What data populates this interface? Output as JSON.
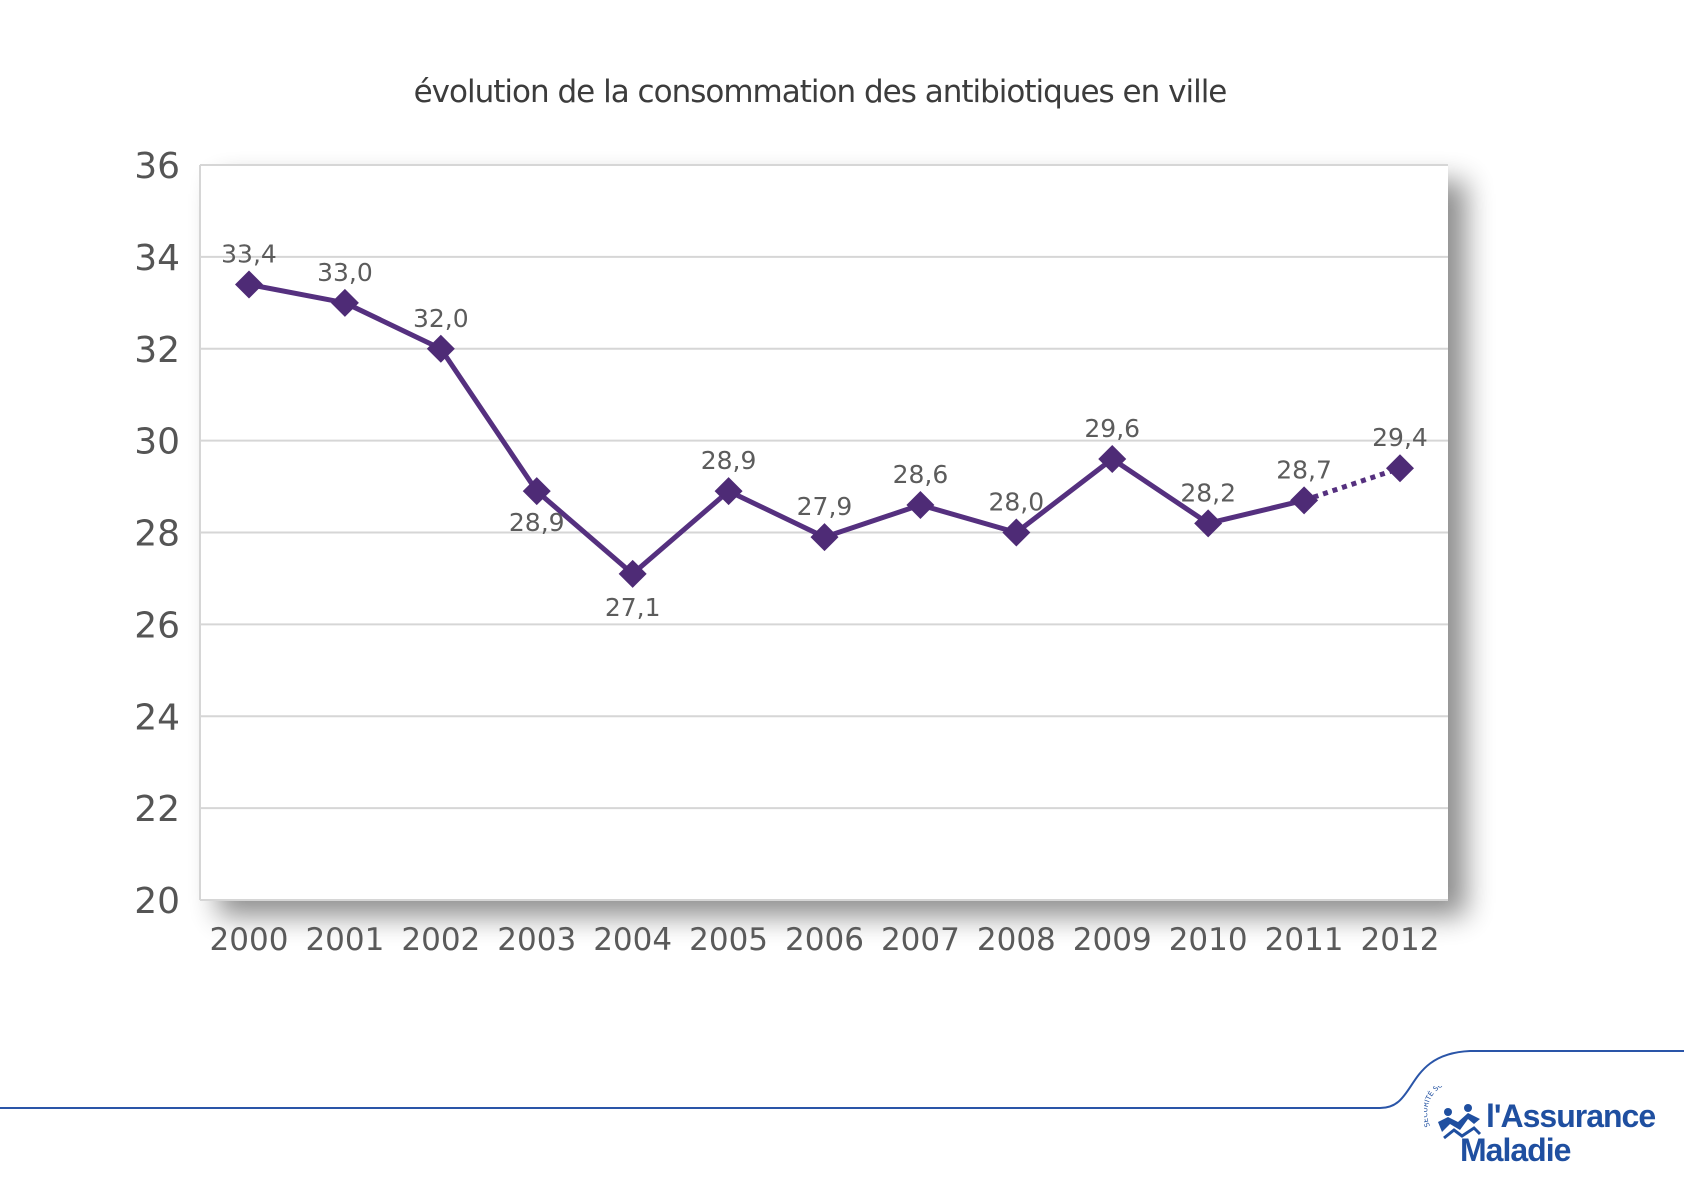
{
  "chart_data": {
    "type": "line",
    "title": "évolution de la consommation des antibiotiques en ville",
    "xlabel": "",
    "ylabel": "",
    "x": [
      "2000",
      "2001",
      "2002",
      "2003",
      "2004",
      "2005",
      "2006",
      "2007",
      "2008",
      "2009",
      "2010",
      "2011",
      "2012"
    ],
    "values": [
      33.4,
      33.0,
      32.0,
      28.9,
      27.1,
      28.9,
      27.9,
      28.6,
      28.0,
      29.6,
      28.2,
      28.7,
      29.4
    ],
    "data_labels": [
      "33,4",
      "33,0",
      "32,0",
      "28,9",
      "27,1",
      "28,9",
      "27,9",
      "28,6",
      "28,0",
      "29,6",
      "28,2",
      "28,7",
      "29,4"
    ],
    "dashed_from_index": 11,
    "ylim": [
      20,
      36
    ],
    "yticks": [
      "20",
      "22",
      "24",
      "26",
      "28",
      "30",
      "32",
      "34",
      "36"
    ],
    "grid": true,
    "legend": "none",
    "colors": {
      "line": "#55307f",
      "marker": "#4e2b76",
      "grid": "#d6d6d6",
      "plot_background": "#ffffff",
      "shadow": "#bdbdbd"
    }
  },
  "footer": {
    "logo": {
      "arc_text": "SÉCURITÉ SOCIALE",
      "name_line1": "l'Assurance",
      "name_line2": "Maladie",
      "color": "#1f4fa0"
    }
  }
}
